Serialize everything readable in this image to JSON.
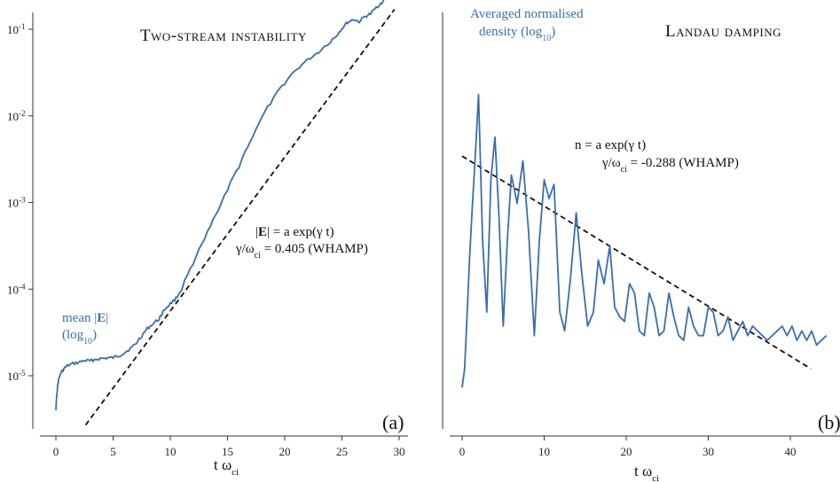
{
  "chart_data": [
    {
      "type": "line",
      "panel_label": "(a)",
      "title": "Two-stream instability",
      "xlabel": "t ω_ci",
      "ylabel": "",
      "y_scale": "log",
      "xlim": [
        -2,
        31
      ],
      "ylim_log10": [
        -5.7,
        -0.8
      ],
      "x_ticks": [
        0,
        5,
        10,
        15,
        20,
        25,
        30
      ],
      "y_ticks": [
        {
          "exp": -5,
          "label": "10-5"
        },
        {
          "exp": -4,
          "label": "10-4"
        },
        {
          "exp": -3,
          "label": "10-3"
        },
        {
          "exp": -2,
          "label": "10-2"
        },
        {
          "exp": -1,
          "label": "10-1"
        }
      ],
      "series": [
        {
          "name": "mean |E| (log10)",
          "color": "#3a6eb0",
          "style": "solid",
          "x": [
            0,
            0.1,
            0.2,
            0.4,
            0.7,
            1.0,
            1.5,
            2.0,
            2.5,
            3.0,
            3.5,
            4.0,
            4.5,
            5.0,
            5.5,
            6.0,
            6.5,
            7.0,
            7.5,
            8.0,
            8.5,
            9.0,
            9.5,
            10.0,
            10.5,
            11.0,
            12.0,
            13.0,
            14.0,
            15.0,
            16.0,
            17.0,
            18.0,
            19.0,
            20.0,
            21.0,
            22.0,
            23.0,
            24.0,
            24.5,
            25.0,
            25.5,
            26.0,
            26.5,
            27.0,
            27.5,
            28.0,
            28.5,
            29.0,
            29.3,
            29.6,
            30.0
          ],
          "y": [
            4e-06,
            6.5e-06,
            8.5e-06,
            1.05e-05,
            1.2e-05,
            1.3e-05,
            1.38e-05,
            1.42e-05,
            1.5e-05,
            1.48e-05,
            1.55e-05,
            1.58e-05,
            1.6e-05,
            1.62e-05,
            1.7e-05,
            1.85e-05,
            2.05e-05,
            2.35e-05,
            2.9e-05,
            3.5e-05,
            4e-05,
            4.5e-05,
            5.8e-05,
            6.8e-05,
            7.8e-05,
            0.0001,
            0.00019,
            0.00037,
            0.00071,
            0.00135,
            0.0026,
            0.005,
            0.0094,
            0.0155,
            0.024,
            0.034,
            0.044,
            0.055,
            0.072,
            0.084,
            0.102,
            0.12,
            0.13,
            0.122,
            0.14,
            0.15,
            0.178,
            0.205,
            0.24,
            0.315,
            0.355,
            0.34
          ]
        },
        {
          "name": "|E| = a exp(γ t)",
          "color": "#111111",
          "style": "dashed",
          "x": [
            2.6,
            29.6
          ],
          "y": [
            2.7e-06,
            0.17
          ]
        }
      ],
      "annotations": {
        "fit_eq": "|E| = a exp(γ t)",
        "growth_rate": "γ/ω_ci = 0.405 (WHAMP)",
        "series_label_line1": "mean |E|",
        "series_label_line2": "(log10)"
      }
    },
    {
      "type": "line",
      "panel_label": "(b)",
      "title": "Landau damping",
      "xlabel": "t ω_ci",
      "ylabel": "",
      "y_scale": "log",
      "xlim": [
        -2,
        45
      ],
      "x_ticks": [
        0,
        10,
        20,
        30,
        40
      ],
      "series": [
        {
          "name": "Averaged normalised density (log10)",
          "color": "#3a6eb0",
          "style": "solid",
          "x": [
            0.0,
            0.3,
            0.6,
            0.9,
            1.2,
            1.6,
            2.0,
            2.5,
            3.0,
            3.5,
            4.0,
            4.5,
            5.0,
            5.5,
            6.0,
            6.7,
            7.4,
            8.1,
            8.8,
            9.4,
            10.0,
            10.6,
            11.2,
            11.9,
            12.5,
            13.2,
            13.9,
            14.6,
            15.3,
            16.0,
            16.6,
            17.3,
            18.0,
            18.6,
            19.2,
            19.8,
            20.4,
            21.0,
            21.6,
            22.2,
            22.8,
            23.4,
            24.0,
            24.6,
            25.2,
            25.8,
            26.4,
            27.0,
            27.6,
            28.2,
            28.8,
            29.4,
            30.0,
            30.6,
            31.2,
            31.8,
            32.4,
            33.0,
            33.6,
            34.2,
            34.8,
            35.4,
            36.0,
            36.6,
            37.2,
            37.8,
            38.4,
            39.0,
            39.6,
            40.2,
            40.8,
            41.4,
            42.0,
            42.6,
            43.2,
            43.8,
            44.4
          ],
          "y": [
            -0.1,
            0.3,
            1.4,
            2.6,
            3.6,
            4.8,
            6.1,
            3.0,
            1.5,
            4.3,
            5.2,
            3.5,
            1.2,
            3.0,
            4.4,
            3.8,
            4.7,
            3.2,
            1.0,
            3.0,
            4.3,
            3.9,
            4.2,
            1.5,
            1.1,
            2.2,
            3.6,
            2.3,
            1.2,
            1.5,
            2.6,
            2.1,
            2.9,
            1.6,
            1.4,
            1.3,
            2.1,
            1.9,
            1.1,
            1.0,
            1.9,
            1.6,
            1.0,
            1.1,
            1.9,
            1.4,
            1.0,
            0.9,
            1.6,
            1.2,
            1.0,
            1.0,
            1.6,
            1.5,
            1.0,
            1.1,
            1.4,
            0.9,
            1.1,
            1.3,
            1.0,
            1.2,
            1.1,
            1.0,
            0.9,
            1.0,
            1.1,
            1.2,
            1.0,
            1.2,
            0.9,
            1.1,
            0.9,
            1.1,
            0.8,
            0.9,
            1.0
          ]
        },
        {
          "name": "n = a exp(γ t)",
          "color": "#111111",
          "style": "dashed",
          "x": [
            0.0,
            42.5
          ],
          "y": [
            4.8,
            0.3
          ]
        }
      ],
      "annotations": {
        "fit_eq": "n = a exp(γ t)",
        "damping_rate": "γ/ω_ci = -0.288 (WHAMP)",
        "series_label_line1": "Averaged normalised",
        "series_label_line2": "density (log10)"
      }
    }
  ],
  "labels": {
    "title_a": "Two-stream instability",
    "title_b": "Landau damping",
    "panel_a": "(a)",
    "panel_b": "(b)",
    "xlabel_main": "t ω",
    "xlabel_sub": "ci",
    "a_eq_pre": "|",
    "a_eq_E": "E",
    "a_eq_post": "| = a exp(γ t)",
    "a_rate_pre": "γ/ω",
    "a_rate_sub": "ci",
    "a_rate_post": " = 0.405 (WHAMP)",
    "a_series_l1_pre": "mean |",
    "a_series_l1_E": "E",
    "a_series_l1_post": "|",
    "a_series_l2_pre": "(log",
    "a_series_l2_sub": "10",
    "a_series_l2_post": ")",
    "b_eq": "n = a exp(γ t)",
    "b_rate_pre": "γ/ω",
    "b_rate_sub": "ci",
    "b_rate_post": " = -0.288 (WHAMP)",
    "b_series_l1": "Averaged normalised",
    "b_series_l2_pre": "density (log",
    "b_series_l2_sub": "10",
    "b_series_l2_post": ")"
  }
}
